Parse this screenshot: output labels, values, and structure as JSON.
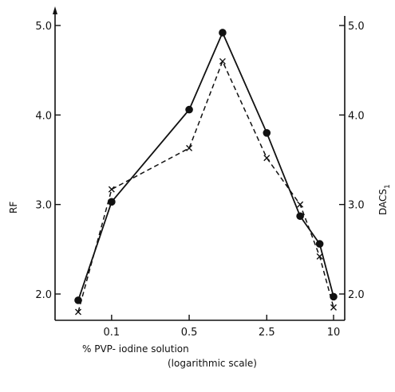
{
  "chart_data": {
    "type": "line",
    "xlabel_line1": "% PVP- iodine solution",
    "xlabel_line2": "(logarithmic scale)",
    "ylabel_left": "RF",
    "ylabel_right": "DACS",
    "ylabel_right_subscript": "1",
    "x_scale": "log",
    "x_ticks": [
      {
        "value": 0.1,
        "label": "0.1"
      },
      {
        "value": 0.5,
        "label": "0.5"
      },
      {
        "value": 2.5,
        "label": "2.5"
      },
      {
        "value": 10,
        "label": "10"
      }
    ],
    "y_ticks": [
      {
        "value": 2.0,
        "label": "2.0"
      },
      {
        "value": 3.0,
        "label": "3.0"
      },
      {
        "value": 4.0,
        "label": "4.0"
      },
      {
        "value": 5.0,
        "label": "5.0"
      }
    ],
    "ylim": [
      1.65,
      5.2
    ],
    "series": [
      {
        "marker": "circle",
        "line": "solid",
        "axis": "left",
        "x": [
          0.05,
          0.1,
          0.5,
          1,
          2.5,
          5,
          7.5,
          10
        ],
        "y": [
          1.93,
          3.03,
          4.06,
          4.92,
          3.8,
          2.87,
          2.56,
          1.97
        ]
      },
      {
        "marker": "x",
        "line": "dashed",
        "axis": "right",
        "x": [
          0.05,
          0.1,
          0.5,
          1,
          2.5,
          5,
          7.5,
          10
        ],
        "y": [
          1.8,
          3.17,
          3.63,
          4.6,
          3.52,
          3.0,
          2.42,
          1.85
        ]
      }
    ]
  }
}
